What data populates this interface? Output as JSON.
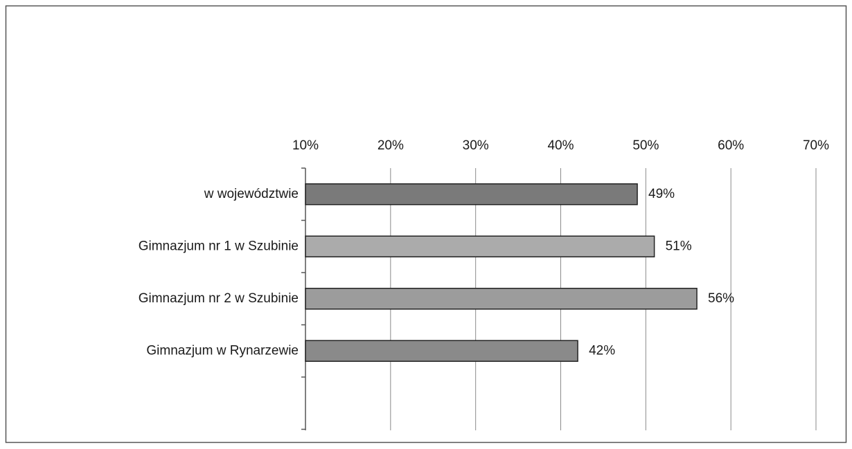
{
  "chart_data": {
    "type": "bar",
    "orientation": "horizontal",
    "categories": [
      "w województwie",
      "Gimnazjum nr 1 w Szubinie",
      "Gimnazjum nr 2 w Szubinie",
      "Gimnazjum w Rynarzewie"
    ],
    "values": [
      49,
      51,
      56,
      42
    ],
    "value_labels": [
      "49%",
      "51%",
      "56%",
      "42%"
    ],
    "colors": [
      "#7a7a7a",
      "#ababab",
      "#9c9c9c",
      "#8a8a8a"
    ],
    "xlim": [
      10,
      70
    ],
    "xticks": [
      {
        "value": 10,
        "label": "10%"
      },
      {
        "value": 20,
        "label": "20%"
      },
      {
        "value": 30,
        "label": "30%"
      },
      {
        "value": 40,
        "label": "40%"
      },
      {
        "value": 50,
        "label": "50%"
      },
      {
        "value": 60,
        "label": "60%"
      },
      {
        "value": 70,
        "label": "70%"
      }
    ],
    "grid": true
  }
}
